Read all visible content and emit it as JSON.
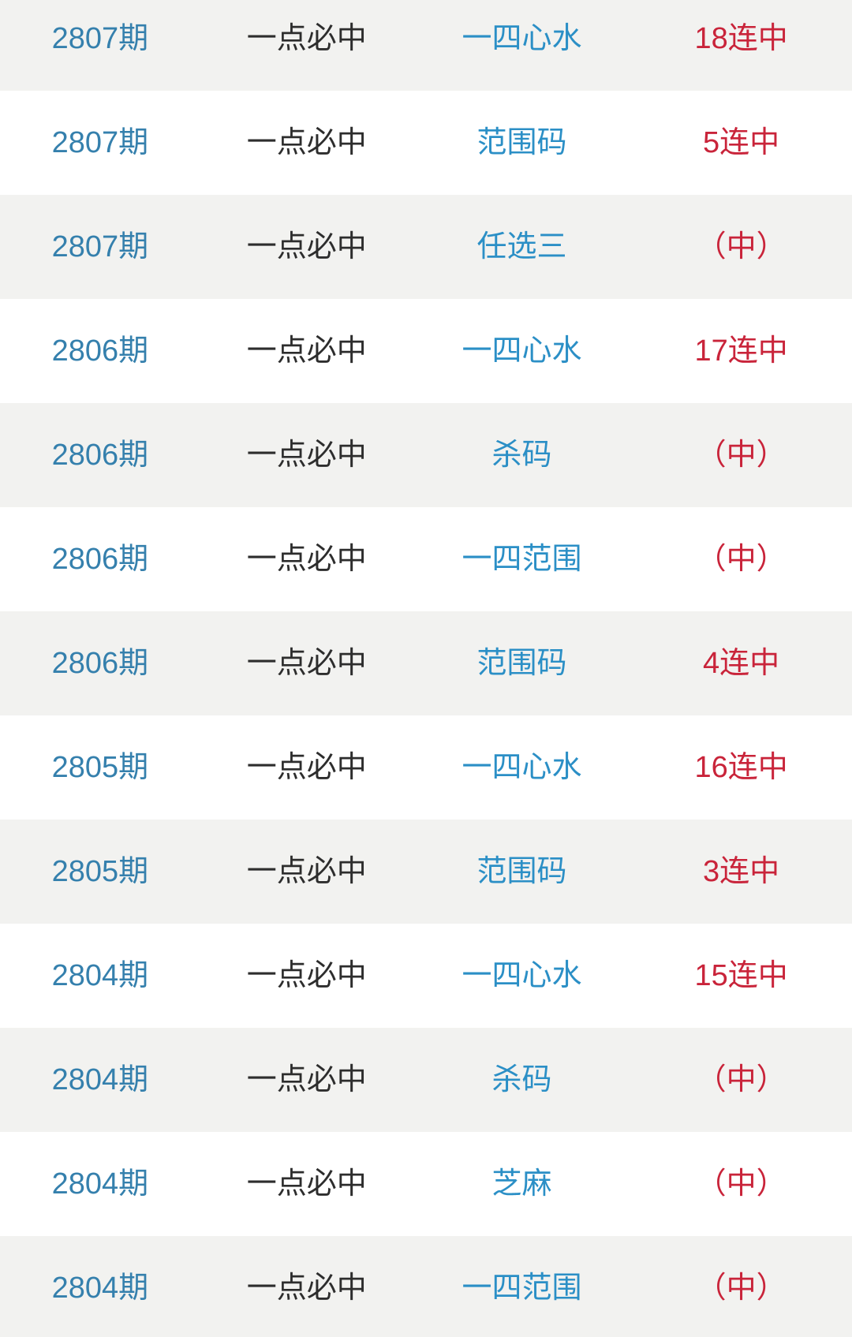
{
  "colors": {
    "period_blue": "#3580ad",
    "play_blue": "#2b8fc6",
    "result_red": "#c9243a",
    "text_dark": "#2d2d2d",
    "row_alt_bg": "#f2f2f0",
    "row_bg": "#ffffff"
  },
  "table": {
    "rows": [
      {
        "period": "2807期",
        "source": "一点必中",
        "play": "一四心水",
        "result": "18连中"
      },
      {
        "period": "2807期",
        "source": "一点必中",
        "play": "范围码",
        "result": "5连中"
      },
      {
        "period": "2807期",
        "source": "一点必中",
        "play": "任选三",
        "result": "（中）"
      },
      {
        "period": "2806期",
        "source": "一点必中",
        "play": "一四心水",
        "result": "17连中"
      },
      {
        "period": "2806期",
        "source": "一点必中",
        "play": "杀码",
        "result": "（中）"
      },
      {
        "period": "2806期",
        "source": "一点必中",
        "play": "一四范围",
        "result": "（中）"
      },
      {
        "period": "2806期",
        "source": "一点必中",
        "play": "范围码",
        "result": "4连中"
      },
      {
        "period": "2805期",
        "source": "一点必中",
        "play": "一四心水",
        "result": "16连中"
      },
      {
        "period": "2805期",
        "source": "一点必中",
        "play": "范围码",
        "result": "3连中"
      },
      {
        "period": "2804期",
        "source": "一点必中",
        "play": "一四心水",
        "result": "15连中"
      },
      {
        "period": "2804期",
        "source": "一点必中",
        "play": "杀码",
        "result": "（中）"
      },
      {
        "period": "2804期",
        "source": "一点必中",
        "play": "芝麻",
        "result": "（中）"
      },
      {
        "period": "2804期",
        "source": "一点必中",
        "play": "一四范围",
        "result": "（中）"
      }
    ]
  }
}
